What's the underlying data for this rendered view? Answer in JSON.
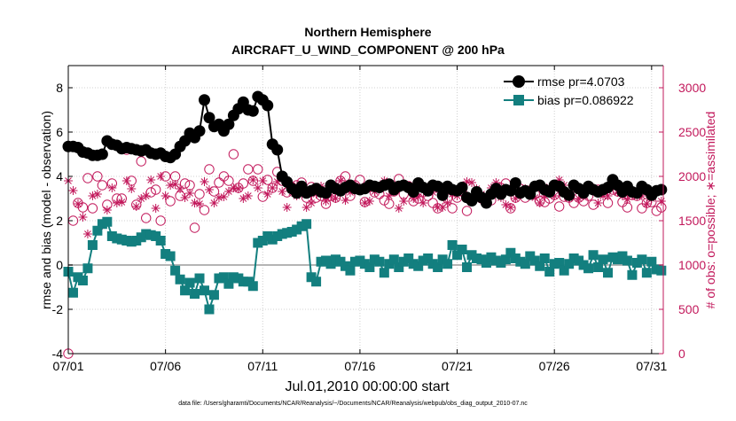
{
  "chart_data": {
    "type": "line",
    "title": "Northern Hemisphere",
    "subtitle": "AIRCRAFT_U_WIND_COMPONENT @ 200 hPa",
    "xlabel": "Jul.01,2010 00:00:00 start",
    "ylabel_left": "rmse and bias (model - observation)",
    "ylabel_right": "# of obs: o=possible; ∗=assimilated",
    "footnote": "data file: /Users/gharamti/Documents/NCAR/Reanalysis/~/Documents/NCAR/Reanalysis/webpub/obs_diag_output_2010-07.nc",
    "x_ticks": [
      {
        "day": 1,
        "label": "07/01"
      },
      {
        "day": 6,
        "label": "07/06"
      },
      {
        "day": 11,
        "label": "07/11"
      },
      {
        "day": 16,
        "label": "07/16"
      },
      {
        "day": 21,
        "label": "07/21"
      },
      {
        "day": 26,
        "label": "07/26"
      },
      {
        "day": 31,
        "label": "07/31"
      }
    ],
    "xlim": [
      1,
      31.6
    ],
    "ylim_left": [
      -4,
      9
    ],
    "yticks_left": [
      -4,
      -2,
      0,
      2,
      4,
      6,
      8
    ],
    "ylim_right": [
      0,
      3250
    ],
    "yticks_right": [
      0,
      500,
      1000,
      1500,
      2000,
      2500,
      3000
    ],
    "grid": true,
    "zero_line": true,
    "legend_position": "top-right",
    "colors": {
      "rmse": "#000000",
      "bias": "#137f7f",
      "obs": "#c2185b",
      "axis": "#000000",
      "grid": "#d0d0d0",
      "zero": "#b4b4b4"
    },
    "x": [
      1.0,
      1.25,
      1.5,
      1.75,
      2.0,
      2.25,
      2.5,
      2.75,
      3.0,
      3.25,
      3.5,
      3.75,
      4.0,
      4.25,
      4.5,
      4.75,
      5.0,
      5.25,
      5.5,
      5.75,
      6.0,
      6.25,
      6.5,
      6.75,
      7.0,
      7.25,
      7.5,
      7.75,
      8.0,
      8.25,
      8.5,
      8.75,
      9.0,
      9.25,
      9.5,
      9.75,
      10.0,
      10.25,
      10.5,
      10.75,
      11.0,
      11.25,
      11.5,
      11.75,
      12.0,
      12.25,
      12.5,
      12.75,
      13.0,
      13.25,
      13.5,
      13.75,
      14.0,
      14.25,
      14.5,
      14.75,
      15.0,
      15.25,
      15.5,
      15.75,
      16.0,
      16.25,
      16.5,
      16.75,
      17.0,
      17.25,
      17.5,
      17.75,
      18.0,
      18.25,
      18.5,
      18.75,
      19.0,
      19.25,
      19.5,
      19.75,
      20.0,
      20.25,
      20.5,
      20.75,
      21.0,
      21.25,
      21.5,
      21.75,
      22.0,
      22.25,
      22.5,
      22.75,
      23.0,
      23.25,
      23.5,
      23.75,
      24.0,
      24.25,
      24.5,
      24.75,
      25.0,
      25.25,
      25.5,
      25.75,
      26.0,
      26.25,
      26.5,
      26.75,
      27.0,
      27.25,
      27.5,
      27.75,
      28.0,
      28.25,
      28.5,
      28.75,
      29.0,
      29.25,
      29.5,
      29.75,
      30.0,
      30.25,
      30.5,
      30.75,
      31.0,
      31.25,
      31.5
    ],
    "series": [
      {
        "name": "rmse pr=4.0703",
        "key": "rmse",
        "axis": "left",
        "marker": "circle",
        "values": [
          5.35,
          5.35,
          5.3,
          5.1,
          5.05,
          4.95,
          4.95,
          5.0,
          5.6,
          5.45,
          5.4,
          5.25,
          5.3,
          5.25,
          5.2,
          5.15,
          5.2,
          5.05,
          5.0,
          5.05,
          4.9,
          4.85,
          5.0,
          5.35,
          5.6,
          5.95,
          5.75,
          6.05,
          7.45,
          6.65,
          6.25,
          6.35,
          6.05,
          6.35,
          6.75,
          7.05,
          7.35,
          7.0,
          6.95,
          7.6,
          7.45,
          7.2,
          5.45,
          5.2,
          4.0,
          3.75,
          3.45,
          3.25,
          3.55,
          3.25,
          3.35,
          3.45,
          3.3,
          3.25,
          3.6,
          3.45,
          3.35,
          3.5,
          3.6,
          3.45,
          3.4,
          3.45,
          3.6,
          3.55,
          3.5,
          3.6,
          3.65,
          3.4,
          3.55,
          3.6,
          3.5,
          3.3,
          3.7,
          3.5,
          3.35,
          3.6,
          3.55,
          3.15,
          3.55,
          3.4,
          3.35,
          3.5,
          3.05,
          2.9,
          3.3,
          3.05,
          2.8,
          3.2,
          3.45,
          3.2,
          3.4,
          3.35,
          3.7,
          3.25,
          3.35,
          3.2,
          3.55,
          3.6,
          3.4,
          3.3,
          3.6,
          3.55,
          3.3,
          3.15,
          3.6,
          3.45,
          3.25,
          3.55,
          3.4,
          3.3,
          3.4,
          3.5,
          3.85,
          3.6,
          3.3,
          3.55,
          3.3,
          3.25,
          3.55,
          3.4,
          3.15,
          3.35,
          3.4
        ]
      },
      {
        "name": "bias pr=0.086922",
        "key": "bias",
        "axis": "left",
        "marker": "square",
        "values": [
          -0.3,
          -1.25,
          -0.55,
          -0.7,
          -0.15,
          0.9,
          1.55,
          1.85,
          1.95,
          1.3,
          1.2,
          1.15,
          1.1,
          1.05,
          1.1,
          1.25,
          1.4,
          1.35,
          1.3,
          1.1,
          0.5,
          0.4,
          -0.25,
          -0.65,
          -1.15,
          -0.8,
          -1.3,
          -0.6,
          -1.15,
          -2.0,
          -1.35,
          -0.6,
          -0.55,
          -0.85,
          -0.55,
          -0.6,
          -0.75,
          -0.75,
          -0.95,
          1.0,
          1.1,
          1.3,
          1.15,
          1.3,
          1.4,
          1.45,
          1.5,
          1.6,
          1.75,
          1.85,
          -0.55,
          -0.75,
          0.15,
          0.2,
          0.05,
          0.25,
          0.15,
          -0.05,
          -0.25,
          0.15,
          0.2,
          0.05,
          -0.1,
          0.25,
          0.15,
          -0.35,
          0.05,
          0.25,
          -0.1,
          0.15,
          0.3,
          0.05,
          -0.05,
          0.2,
          0.3,
          0.05,
          -0.1,
          0.25,
          0.05,
          0.9,
          0.45,
          0.7,
          -0.1,
          0.45,
          0.3,
          0.25,
          0.1,
          0.35,
          0.2,
          0.1,
          0.25,
          0.55,
          0.3,
          0.15,
          0.05,
          0.4,
          0.2,
          -0.05,
          0.3,
          -0.3,
          0.05,
          0.1,
          -0.25,
          0.05,
          0.3,
          0.2,
          0.0,
          -0.15,
          0.45,
          -0.1,
          0.25,
          -0.35,
          0.35,
          0.25,
          0.4,
          0.2,
          -0.45,
          0.1,
          0.25,
          -0.35,
          0.15,
          -0.2,
          -0.25
        ]
      },
      {
        "name": "possible",
        "key": "possible",
        "axis": "right",
        "marker": "open-circle",
        "values": [
          0,
          1500,
          1700,
          1650,
          1980,
          1640,
          2000,
          1900,
          1680,
          1920,
          1750,
          1750,
          2300,
          1950,
          1680,
          2170,
          1530,
          1820,
          1850,
          1500,
          2000,
          1720,
          2000,
          1780,
          1920,
          1900,
          1420,
          1800,
          1620,
          2080,
          1830,
          1930,
          2000,
          1950,
          2250,
          1870,
          1920,
          2080,
          1950,
          2080,
          1770,
          1960,
          1870,
          2050,
          1950,
          1820,
          1880,
          1900,
          1930,
          1760,
          1880,
          1760,
          1780,
          1690,
          1780,
          1760,
          1950,
          2000,
          1780,
          1900,
          1960,
          1710,
          1880,
          1820,
          1800,
          1730,
          1690,
          1830,
          1970,
          1800,
          1890,
          1720,
          1750,
          1820,
          1780,
          1700,
          1640,
          1780,
          1750,
          1640,
          1760,
          1830,
          1610,
          1720,
          1780,
          1750,
          1740,
          1730,
          1860,
          1870,
          1920,
          1640,
          1760,
          1860,
          1760,
          1840,
          1800,
          1720,
          1710,
          1750,
          1790,
          1660,
          1770,
          1760,
          1700,
          1760,
          1720,
          1780,
          1680,
          1850,
          1820,
          1700,
          1850,
          1830,
          1710,
          1650,
          1790,
          1780,
          1640,
          1700,
          1710,
          1610,
          1650
        ]
      },
      {
        "name": "assimilated",
        "key": "assimilated",
        "axis": "right",
        "marker": "asterisk",
        "values": [
          1950,
          1840,
          1690,
          1540,
          1350,
          1780,
          1800,
          1450,
          1620,
          1870,
          1700,
          1710,
          1950,
          1860,
          1660,
          1750,
          1780,
          1960,
          1640,
          2000,
          1780,
          1900,
          1910,
          1860,
          1760,
          1810,
          1700,
          1690,
          1940,
          1850,
          1700,
          1760,
          1770,
          1830,
          1870,
          1860,
          1750,
          1780,
          1960,
          1870,
          1950,
          1800,
          1870,
          1940,
          1830,
          1650,
          1820,
          1780,
          1880,
          1650,
          1700,
          1800,
          1890,
          1720,
          1780,
          1750,
          1950,
          1730,
          1820,
          1890,
          1850,
          1700,
          1720,
          1830,
          1880,
          1950,
          1780,
          1840,
          1640,
          1720,
          1880,
          1750,
          1770,
          1700,
          1880,
          1820,
          1650,
          1650,
          1700,
          1800,
          1780,
          1850,
          1940,
          1930,
          1860,
          1800,
          1720,
          1870,
          1930,
          1760,
          1680,
          1650,
          1750,
          1830,
          1860,
          1800,
          1760,
          1700,
          1780,
          1880,
          1780,
          1960,
          1900,
          1760,
          1860,
          1750,
          1780,
          1880,
          1870,
          1700,
          1780,
          1780,
          1900,
          1820,
          1780,
          1740,
          1790,
          1780,
          1780,
          1690,
          1750,
          1830,
          1720
        ]
      }
    ],
    "legend": [
      {
        "key": "rmse",
        "label": "rmse pr=4.0703"
      },
      {
        "key": "bias",
        "label": "bias pr=0.086922"
      }
    ]
  }
}
